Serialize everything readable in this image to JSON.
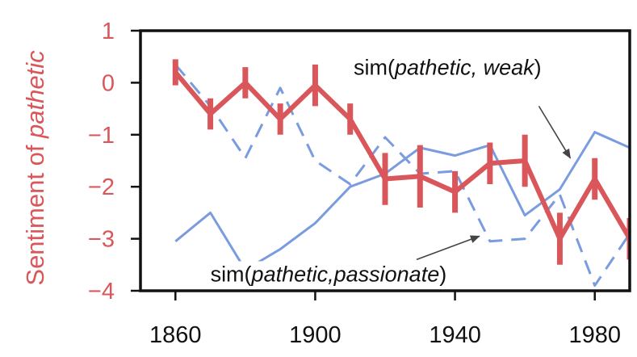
{
  "chart_data": {
    "type": "line",
    "ylabel_prefix": "Sentiment of ",
    "ylabel_emph": "pathetic",
    "xlim": [
      1850,
      1990
    ],
    "ylim": [
      -4,
      1
    ],
    "x_ticks": [
      1860,
      1900,
      1940,
      1980
    ],
    "x_tick_labels": [
      "1860",
      "1900",
      "1940",
      "1980"
    ],
    "y_ticks": [
      1,
      0,
      -1,
      -2,
      -3,
      -4
    ],
    "y_tick_labels": [
      "1",
      "0",
      "−1",
      "−2",
      "−3",
      "−4"
    ],
    "colors": {
      "sentiment": "#d9575b",
      "similarity": "#7a9be0",
      "axis_text": "#d9575b",
      "arrow": "#444444"
    },
    "series": [
      {
        "name": "sentiment",
        "style": "thick-with-errorbars",
        "x": [
          1860,
          1870,
          1880,
          1890,
          1900,
          1910,
          1920,
          1930,
          1940,
          1950,
          1960,
          1970,
          1980,
          1990
        ],
        "y": [
          0.2,
          -0.6,
          0.0,
          -0.7,
          -0.05,
          -0.7,
          -1.85,
          -1.8,
          -2.1,
          -1.55,
          -1.5,
          -3.0,
          -1.85,
          -3.0
        ],
        "err": [
          0.25,
          0.3,
          0.3,
          0.3,
          0.4,
          0.3,
          0.5,
          0.6,
          0.4,
          0.4,
          0.5,
          0.5,
          0.4,
          0.4
        ]
      },
      {
        "name": "sim(pathetic, weak)",
        "style": "dashed",
        "x": [
          1860,
          1870,
          1880,
          1890,
          1900,
          1910,
          1920,
          1930,
          1940,
          1950,
          1960,
          1970,
          1980,
          1990
        ],
        "y": [
          0.35,
          -0.45,
          -1.45,
          -0.1,
          -1.5,
          -1.95,
          -1.05,
          -1.75,
          -1.7,
          -3.05,
          -3.0,
          -2.15,
          -3.9,
          -2.9
        ]
      },
      {
        "name": "sim(pathetic,passionate)",
        "style": "solid",
        "x": [
          1860,
          1870,
          1880,
          1890,
          1900,
          1910,
          1920,
          1930,
          1940,
          1950,
          1960,
          1970,
          1980,
          1990
        ],
        "y": [
          -3.05,
          -2.5,
          -3.6,
          -3.2,
          -2.7,
          -2.0,
          -1.75,
          -1.25,
          -1.4,
          -1.2,
          -2.55,
          -2.05,
          -0.95,
          -1.25
        ]
      }
    ],
    "annotations": [
      {
        "id": "weak",
        "prefix": "sim(",
        "emph": "pathetic, weak",
        "suffix": ")",
        "text_at": [
          1911,
          0.15
        ],
        "arrow_from": [
          1964,
          -0.45
        ],
        "arrow_to": [
          1973,
          -1.45
        ]
      },
      {
        "id": "passionate",
        "prefix": "sim(",
        "emph": "pathetic,passionate",
        "suffix": ")",
        "text_at": [
          1870,
          -3.82
        ],
        "arrow_from": [
          1929,
          -3.4
        ],
        "arrow_to": [
          1947,
          -2.95
        ]
      }
    ]
  }
}
